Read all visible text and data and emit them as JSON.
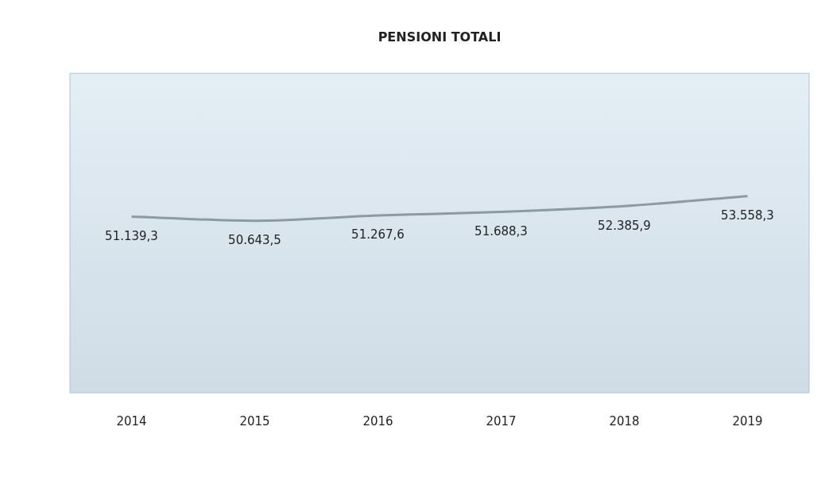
{
  "chart_data": {
    "type": "line",
    "title": "PENSIONI TOTALI",
    "categories": [
      "2014",
      "2015",
      "2016",
      "2017",
      "2018",
      "2019"
    ],
    "series": [
      {
        "color": "#8c9aa6",
        "values": [
          51139.3,
          50643.5,
          51267.6,
          51688.3,
          52385.9,
          53558.3
        ],
        "value_labels": [
          "51.139,3",
          "50.643,5",
          "51.267,6",
          "51.688,3",
          "52.385,9",
          "53.558,3"
        ]
      }
    ],
    "grid": false,
    "legend": false,
    "marker": "none",
    "line_style": "solid"
  }
}
